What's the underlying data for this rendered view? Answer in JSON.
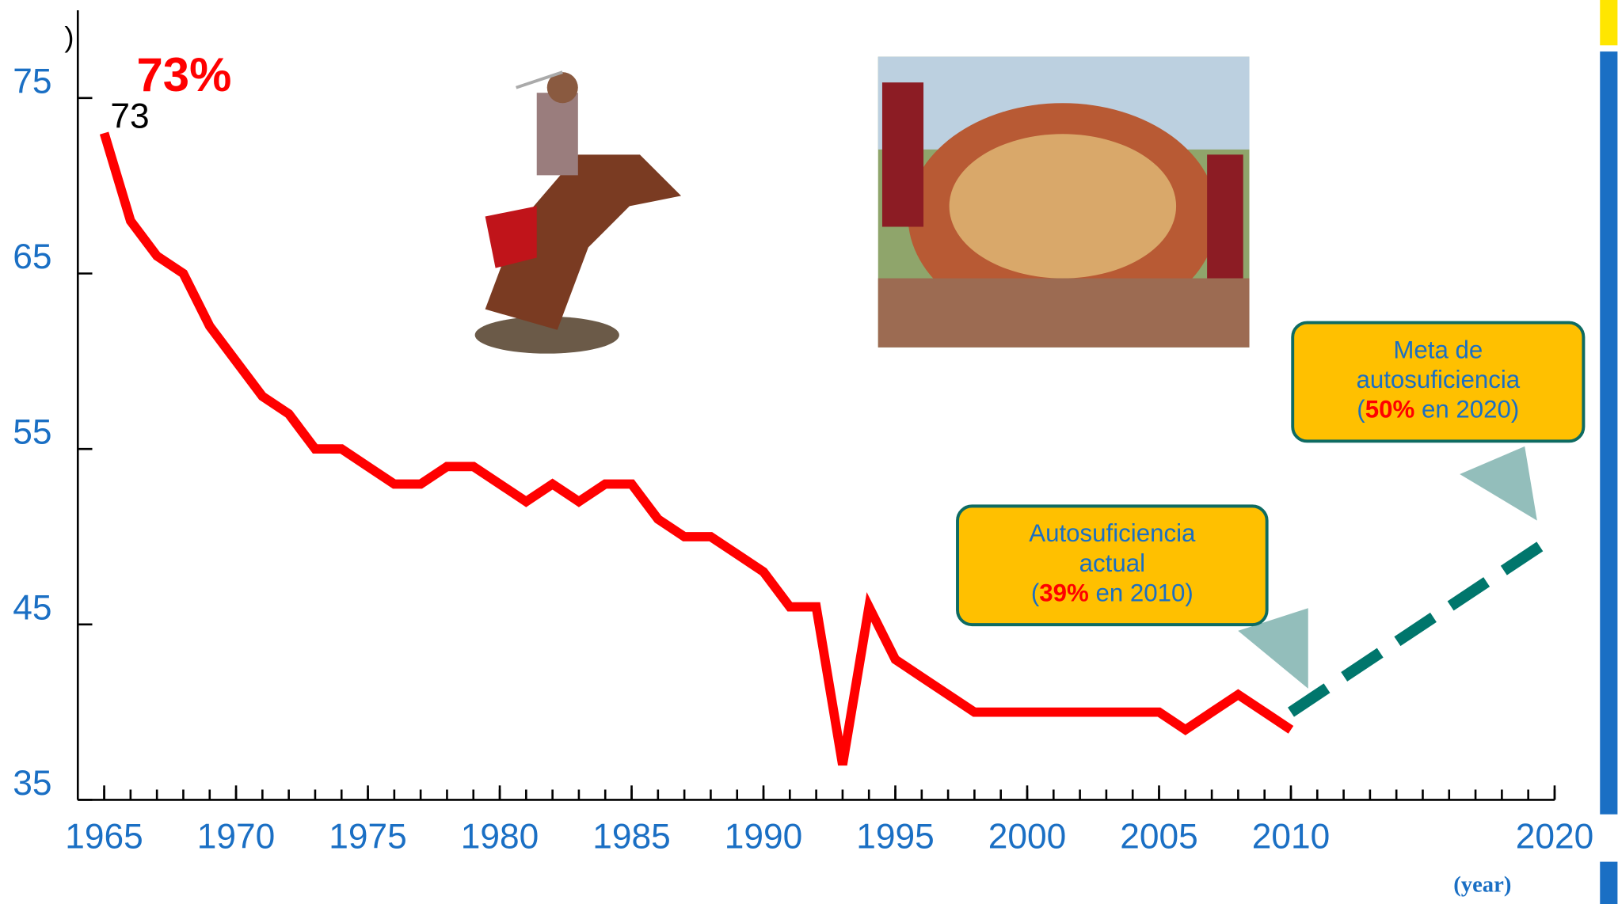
{
  "chart_data": {
    "type": "line",
    "x_label": "(year)",
    "corner_mark": ")",
    "xlim": [
      1964,
      2020
    ],
    "xticks": [
      1965,
      1970,
      1975,
      1980,
      1985,
      1990,
      1995,
      2000,
      2005,
      2010,
      2020
    ],
    "ylim": [
      35,
      80
    ],
    "yticks": [
      35,
      45,
      55,
      65,
      75
    ],
    "series": [
      {
        "color": "#ff0000",
        "x": [
          1965,
          1966,
          1967,
          1968,
          1969,
          1970,
          1971,
          1972,
          1973,
          1974,
          1975,
          1976,
          1977,
          1978,
          1979,
          1980,
          1981,
          1982,
          1983,
          1984,
          1985,
          1986,
          1987,
          1988,
          1989,
          1990,
          1991,
          1992,
          1993,
          1994,
          1995,
          1996,
          1997,
          1998,
          1999,
          2000,
          2001,
          2002,
          2003,
          2004,
          2005,
          2006,
          2007,
          2008,
          2009,
          2010
        ],
        "values": [
          73,
          68,
          66,
          65,
          62,
          60,
          58,
          57,
          55,
          55,
          54,
          53,
          53,
          54,
          54,
          53,
          52,
          53,
          52,
          53,
          53,
          51,
          50,
          50,
          49,
          48,
          46,
          46,
          37,
          46,
          43,
          42,
          41,
          40,
          40,
          40,
          40,
          40,
          40,
          40,
          40,
          39,
          40,
          41,
          40,
          39
        ]
      },
      {
        "color": "#00766c",
        "dashed": true,
        "x": [
          2010,
          2020
        ],
        "values": [
          40,
          50
        ]
      }
    ],
    "peak_annotation": "73%",
    "callouts": [
      {
        "lines": [
          "Autosuficiencia",
          "actual"
        ],
        "open": "(",
        "highlight": "39%",
        "rest": " en 2010)"
      },
      {
        "lines": [
          "Meta de",
          "autosuficiencia"
        ],
        "open": "(",
        "highlight": "50%",
        "rest": " en 2020)"
      }
    ]
  }
}
